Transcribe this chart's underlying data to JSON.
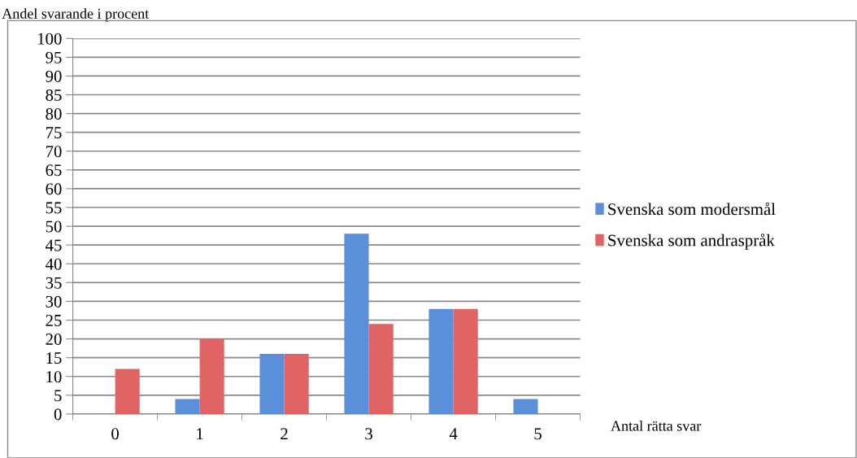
{
  "chart_data": {
    "type": "bar",
    "ylabel": "Andel svarande i procent",
    "xlabel": "Antal rätta svar",
    "categories": [
      "0",
      "1",
      "2",
      "3",
      "4",
      "5"
    ],
    "series": [
      {
        "name": "Svenska som modersmål",
        "color": "#5b8fd9",
        "values": [
          null,
          4,
          16,
          48,
          28,
          4
        ]
      },
      {
        "name": "Svenska som andraspråk",
        "color": "#e06464",
        "values": [
          12,
          20,
          16,
          24,
          28,
          null
        ]
      }
    ],
    "ylim": [
      0,
      100
    ],
    "yticks": [
      0,
      5,
      10,
      15,
      20,
      25,
      30,
      35,
      40,
      45,
      50,
      55,
      60,
      65,
      70,
      75,
      80,
      85,
      90,
      95,
      100
    ],
    "grid": "y",
    "legend": "right"
  }
}
